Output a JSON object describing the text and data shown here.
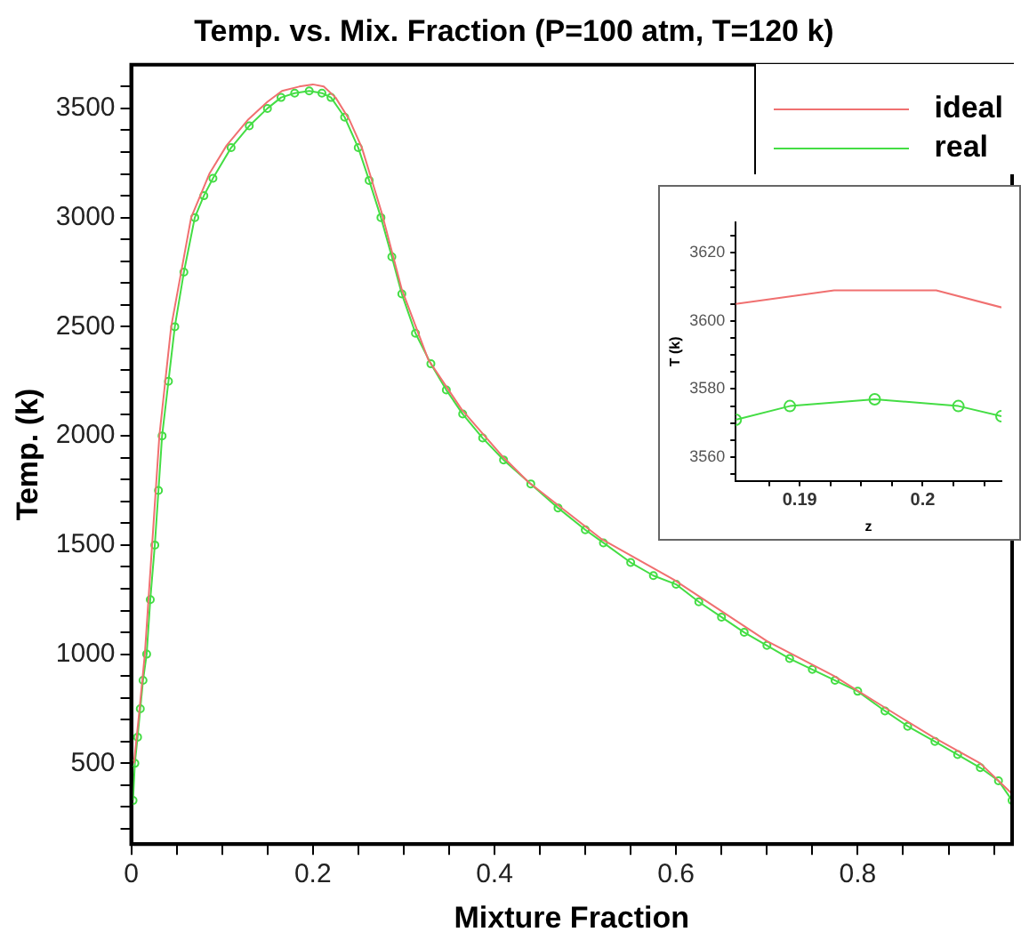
{
  "chart_data": [
    {
      "type": "line",
      "title": "Temp. vs. Mix. Fraction (P=100 atm, T=120 k)",
      "xlabel": "Mixture Fraction",
      "ylabel": "Temp. (k)",
      "xlim": [
        0,
        0.97
      ],
      "ylim": [
        130,
        3700
      ],
      "xticks": [
        0,
        {
          "value": 0.05,
          "label": null
        },
        {
          "value": 0.1,
          "label": null
        },
        {
          "value": 0.15,
          "label": null
        },
        0.2,
        {
          "value": 0.25,
          "label": null
        },
        {
          "value": 0.3,
          "label": null
        },
        {
          "value": 0.35,
          "label": null
        },
        0.4,
        {
          "value": 0.45,
          "label": null
        },
        {
          "value": 0.5,
          "label": null
        },
        {
          "value": 0.55,
          "label": null
        },
        0.6,
        {
          "value": 0.65,
          "label": null
        },
        {
          "value": 0.7,
          "label": null
        },
        {
          "value": 0.75,
          "label": null
        },
        0.8,
        {
          "value": 0.85,
          "label": null
        },
        {
          "value": 0.9,
          "label": null
        },
        {
          "value": 0.95,
          "label": null
        }
      ],
      "yticks": [
        {
          "value": 200,
          "label": null
        },
        {
          "value": 300,
          "label": null
        },
        {
          "value": 400,
          "label": null
        },
        500,
        {
          "value": 600,
          "label": null
        },
        {
          "value": 700,
          "label": null
        },
        {
          "value": 800,
          "label": null
        },
        {
          "value": 900,
          "label": null
        },
        1000,
        {
          "value": 1100,
          "label": null
        },
        {
          "value": 1200,
          "label": null
        },
        {
          "value": 1300,
          "label": null
        },
        {
          "value": 1400,
          "label": null
        },
        1500,
        {
          "value": 1600,
          "label": null
        },
        {
          "value": 1700,
          "label": null
        },
        {
          "value": 1800,
          "label": null
        },
        {
          "value": 1900,
          "label": null
        },
        2000,
        {
          "value": 2100,
          "label": null
        },
        {
          "value": 2200,
          "label": null
        },
        {
          "value": 2300,
          "label": null
        },
        {
          "value": 2400,
          "label": null
        },
        2500,
        {
          "value": 2600,
          "label": null
        },
        {
          "value": 2700,
          "label": null
        },
        {
          "value": 2800,
          "label": null
        },
        {
          "value": 2900,
          "label": null
        },
        3000,
        {
          "value": 3100,
          "label": null
        },
        {
          "value": 3200,
          "label": null
        },
        {
          "value": 3300,
          "label": null
        },
        {
          "value": 3400,
          "label": null
        },
        3500,
        {
          "value": 3600,
          "label": null
        }
      ],
      "grid": false,
      "legend": "top right",
      "series": [
        {
          "name": "ideal",
          "color": "#f07070",
          "marker": "none",
          "x": [
            0.003,
            0.008,
            0.015,
            0.023,
            0.031,
            0.044,
            0.066,
            0.086,
            0.105,
            0.129,
            0.15,
            0.166,
            0.185,
            0.2,
            0.212,
            0.225,
            0.24,
            0.254,
            0.276,
            0.298,
            0.327,
            0.364,
            0.408,
            0.437,
            0.517,
            0.598,
            0.7,
            0.774,
            0.832,
            0.883,
            0.935,
            0.97
          ],
          "values": [
            500,
            700,
            1000,
            1500,
            2000,
            2500,
            3000,
            3200,
            3330,
            3450,
            3530,
            3580,
            3600,
            3610,
            3600,
            3550,
            3450,
            3320,
            3020,
            2670,
            2350,
            2120,
            1910,
            1790,
            1530,
            1340,
            1060,
            900,
            750,
            620,
            500,
            360
          ]
        },
        {
          "name": "real",
          "color": "#44dd44",
          "marker": "circle",
          "x": [
            0.002,
            0.004,
            0.007,
            0.01,
            0.013,
            0.017,
            0.021,
            0.026,
            0.03,
            0.034,
            0.041,
            0.048,
            0.058,
            0.07,
            0.08,
            0.09,
            0.11,
            0.13,
            0.15,
            0.165,
            0.18,
            0.196,
            0.21,
            0.22,
            0.235,
            0.25,
            0.262,
            0.275,
            0.287,
            0.298,
            0.313,
            0.33,
            0.347,
            0.365,
            0.387,
            0.41,
            0.44,
            0.47,
            0.5,
            0.52,
            0.55,
            0.575,
            0.6,
            0.625,
            0.65,
            0.675,
            0.7,
            0.725,
            0.75,
            0.775,
            0.8,
            0.83,
            0.855,
            0.885,
            0.91,
            0.935,
            0.955,
            0.97
          ],
          "values": [
            330,
            500,
            620,
            750,
            880,
            1000,
            1250,
            1500,
            1750,
            2000,
            2250,
            2500,
            2750,
            3000,
            3100,
            3180,
            3320,
            3420,
            3500,
            3550,
            3570,
            3580,
            3570,
            3550,
            3460,
            3320,
            3170,
            3000,
            2820,
            2650,
            2470,
            2330,
            2210,
            2100,
            1990,
            1890,
            1780,
            1670,
            1570,
            1510,
            1420,
            1360,
            1320,
            1240,
            1170,
            1100,
            1040,
            980,
            930,
            880,
            830,
            740,
            670,
            600,
            540,
            480,
            420,
            330
          ]
        }
      ]
    },
    {
      "type": "line",
      "xlabel": "z",
      "ylabel": "T (k)",
      "xlim": [
        0.1848,
        0.2064
      ],
      "ylim": [
        3553,
        3629
      ],
      "xticks": [
        {
          "value": 0.1875,
          "label": null
        },
        0.19,
        {
          "value": 0.1925,
          "label": null
        },
        {
          "value": 0.195,
          "label": null
        },
        {
          "value": 0.1975,
          "label": null
        },
        0.2,
        {
          "value": 0.2025,
          "label": null
        },
        {
          "value": 0.205,
          "label": null
        }
      ],
      "yticks": [
        {
          "value": 3555,
          "label": null
        },
        3560,
        {
          "value": 3565,
          "label": null
        },
        {
          "value": 3570,
          "label": null
        },
        {
          "value": 3575,
          "label": null
        },
        3580,
        {
          "value": 3585,
          "label": null
        },
        {
          "value": 3590,
          "label": null
        },
        {
          "value": 3595,
          "label": null
        },
        3600,
        {
          "value": 3605,
          "label": null
        },
        {
          "value": 3610,
          "label": null
        },
        {
          "value": 3615,
          "label": null
        },
        3620,
        {
          "value": 3625,
          "label": null
        }
      ],
      "grid": false,
      "series": [
        {
          "color": "#f07070",
          "marker": "none",
          "x": [
            0.1848,
            0.1928,
            0.2011,
            0.2064
          ],
          "values": [
            3605,
            3609,
            3609,
            3604
          ]
        },
        {
          "color": "#44dd44",
          "marker": "circle",
          "x": [
            0.1848,
            0.1892,
            0.1961,
            0.2029,
            0.2064
          ],
          "values": [
            3571,
            3575,
            3577,
            3575,
            3572
          ]
        }
      ]
    }
  ]
}
